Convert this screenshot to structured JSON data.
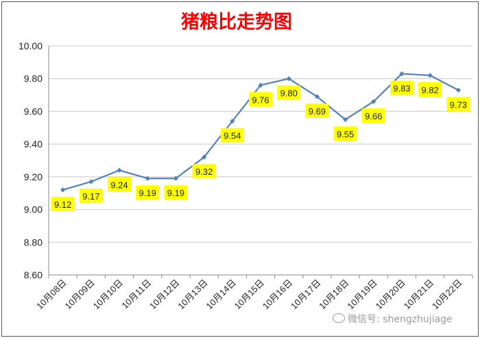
{
  "chart_data": {
    "type": "line",
    "title": "猪粮比走势图",
    "categories": [
      "10月08日",
      "10月09日",
      "10月10日",
      "10月11日",
      "10月12日",
      "10月13日",
      "10月14日",
      "10月15日",
      "10月16日",
      "10月17日",
      "10月18日",
      "10月19日",
      "10月20日",
      "10月21日",
      "10月22日"
    ],
    "series": [
      {
        "values": [
          9.12,
          9.17,
          9.24,
          9.19,
          9.19,
          9.32,
          9.54,
          9.76,
          9.8,
          9.69,
          9.55,
          9.66,
          9.83,
          9.82,
          9.73
        ]
      }
    ],
    "data_labels": [
      "9.12",
      "9.17",
      "9.24",
      "9.19",
      "9.19",
      "9.32",
      "9.54",
      "9.76",
      "9.80",
      "9.69",
      "9.55",
      "9.66",
      "9.83",
      "9.82",
      "9.73"
    ],
    "yticks": [
      "8.60",
      "8.80",
      "9.00",
      "9.20",
      "9.40",
      "9.60",
      "9.80",
      "10.00"
    ],
    "ylim": [
      8.6,
      10.0
    ],
    "grid": true,
    "line_color": "#4f81bd",
    "title_color": "#ff0000",
    "label_bg_color": "#ffff00"
  },
  "watermark": {
    "text": "微信号: shengzhujiage",
    "icon": "wechat-icon"
  }
}
